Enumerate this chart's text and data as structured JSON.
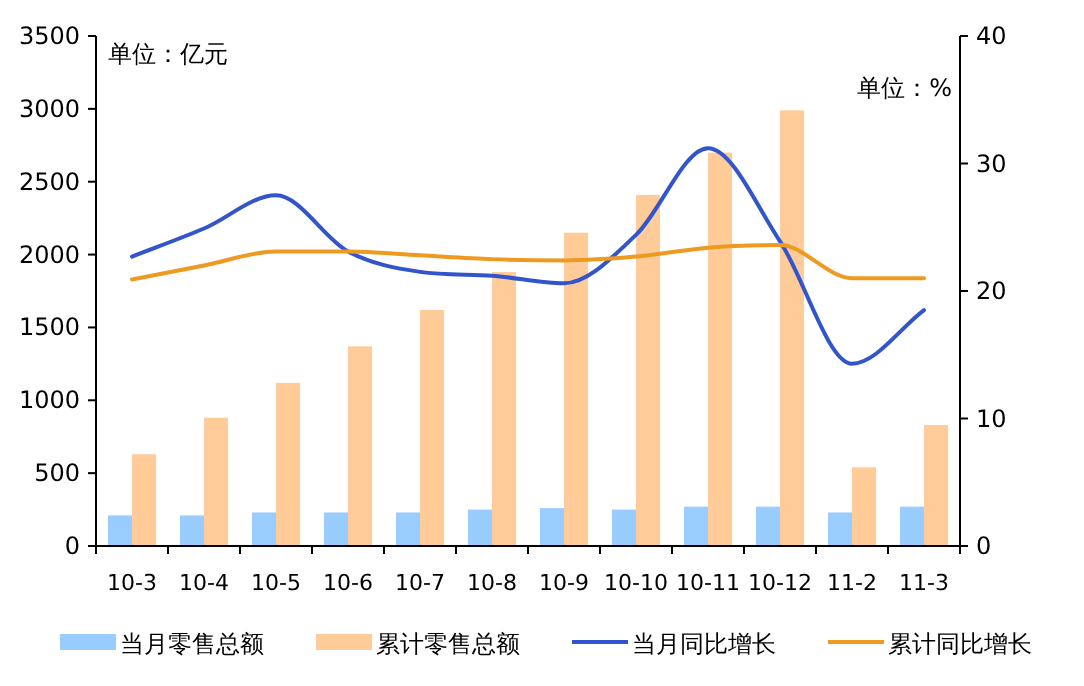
{
  "chart_data": {
    "type": "bar",
    "categories": [
      "10-3",
      "10-4",
      "10-5",
      "10-6",
      "10-7",
      "10-8",
      "10-9",
      "10-10",
      "10-11",
      "10-12",
      "11-2",
      "11-3"
    ],
    "series": [
      {
        "name": "当月零售总额",
        "color": "#99ccff",
        "values": [
          210,
          210,
          230,
          230,
          230,
          250,
          260,
          250,
          270,
          270,
          230,
          270
        ]
      },
      {
        "name": "累计零售总额",
        "color": "#ffcc99",
        "values": [
          630,
          880,
          1120,
          1370,
          1620,
          1880,
          2150,
          2410,
          2700,
          2990,
          540,
          830
        ]
      },
      {
        "name": "当月同比增长",
        "type": "line",
        "axis": "y2",
        "color": "#3355cc",
        "values": [
          22.7,
          24.9,
          27.5,
          23.1,
          21.5,
          21.2,
          20.6,
          24.4,
          31.2,
          23.9,
          14.3,
          18.5
        ]
      },
      {
        "name": "累计同比增长",
        "type": "line",
        "axis": "y2",
        "color": "#ee9922",
        "values": [
          20.9,
          22.0,
          23.1,
          23.1,
          22.8,
          22.5,
          22.4,
          22.7,
          23.4,
          23.6,
          21.0,
          21.0
        ]
      }
    ],
    "ylim": [
      0,
      3500
    ],
    "yticks": [
      0,
      500,
      1000,
      1500,
      2000,
      2500,
      3000,
      3500
    ],
    "y2lim": [
      0,
      40
    ],
    "y2ticks": [
      0,
      10,
      20,
      30,
      40
    ],
    "annotations": [
      "单位：亿元",
      "单位：%"
    ],
    "legend": "bottom",
    "grid": false
  }
}
